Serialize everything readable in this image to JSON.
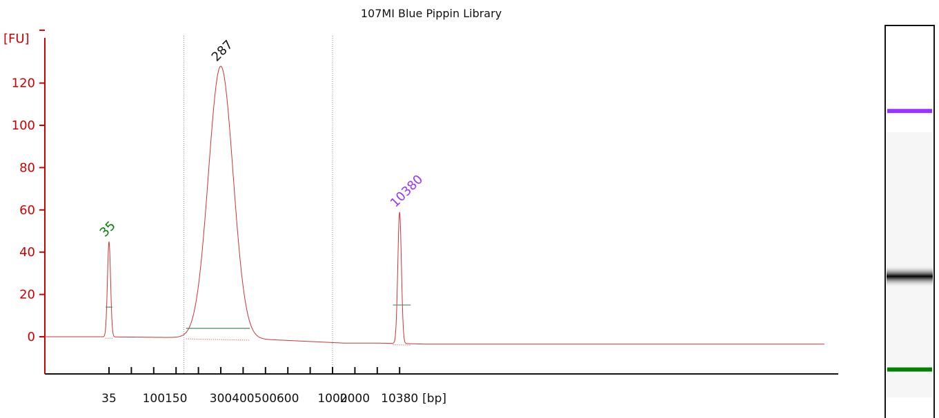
{
  "chart_data": {
    "type": "line",
    "title": "107MI Blue Pippin Library",
    "ylabel": "[FU]",
    "xlabel": "[bp]",
    "ylim": [
      -17,
      145
    ],
    "yticks": [
      0,
      20,
      40,
      60,
      80,
      100,
      120
    ],
    "xticks": [
      {
        "label": "35",
        "show": true
      },
      {
        "label": "",
        "show": false
      },
      {
        "label": "100",
        "show": true
      },
      {
        "label": "150",
        "show": true
      },
      {
        "label": "",
        "show": false
      },
      {
        "label": "300",
        "show": true
      },
      {
        "label": "400",
        "show": true
      },
      {
        "label": "500",
        "show": true
      },
      {
        "label": "600",
        "show": true
      },
      {
        "label": "",
        "show": false
      },
      {
        "label": "1000",
        "show": true
      },
      {
        "label": "2000",
        "show": true
      },
      {
        "label": "",
        "show": false
      },
      {
        "label": "10380",
        "show": true
      },
      {
        "label": "[bp]",
        "show": true
      }
    ],
    "series": [
      {
        "color": "#cc3333",
        "baseline": [
          [
            -0.5,
            0
          ],
          [
            2.3,
            -0.3
          ],
          [
            5.2,
            -0.5
          ],
          [
            7.5,
            -1.5
          ],
          [
            10.5,
            -3.0
          ],
          [
            12.0,
            -3.0
          ],
          [
            13.5,
            -3.3
          ],
          [
            14.2,
            -3.5
          ]
        ],
        "peaks": [
          {
            "x": 0.0,
            "height": 45,
            "width": 0.07
          },
          {
            "x": 5.0,
            "height": 128,
            "width": 0.55
          },
          {
            "x": 13.0,
            "height": 59,
            "width": 0.08
          }
        ]
      }
    ],
    "peak_labels": [
      {
        "text": "35",
        "x": 0.0,
        "y": 45,
        "color": "#008000"
      },
      {
        "text": "287",
        "x": 5.0,
        "y": 128,
        "color": "#111111"
      },
      {
        "text": "10380",
        "x": 13.0,
        "y": 59,
        "color": "#9933ff"
      }
    ],
    "region_bars": [
      {
        "x1": -0.15,
        "x2": 0.15,
        "y": 14
      },
      {
        "x1": 3.45,
        "x2": 6.3,
        "y": 4
      },
      {
        "x1": 12.7,
        "x2": 13.5,
        "y": 15
      }
    ],
    "dotted_vlines": [
      3.35,
      10.0
    ],
    "gel": {
      "bands": [
        {
          "name": "upper-marker-band",
          "position": 0.225,
          "color": "#9933ff"
        },
        {
          "name": "sample-band",
          "position": 0.66,
          "color": "#000000"
        },
        {
          "name": "lower-marker-band",
          "position": 0.905,
          "color": "#008000"
        }
      ]
    },
    "grid": false,
    "legend": "none",
    "axis_color": "#cc0000"
  }
}
